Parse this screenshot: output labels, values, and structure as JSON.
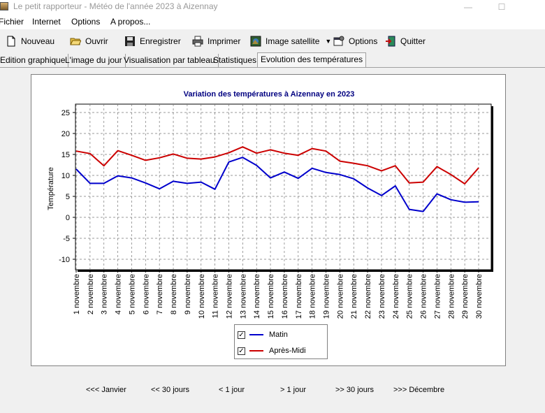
{
  "window": {
    "title": "Le petit rapporteur - Météo de l'année 2023 à Aizennay",
    "minimize_glyph": "—",
    "maximize_glyph": "☐"
  },
  "menu": [
    "Fichier",
    "Internet",
    "Options",
    "A propos..."
  ],
  "toolbar": {
    "nouveau": "Nouveau",
    "ouvrir": "Ouvrir",
    "enregistrer": "Enregistrer",
    "imprimer": "Imprimer",
    "image_satellite": "Image satellite",
    "options": "Options",
    "quitter": "Quitter"
  },
  "tabs": [
    "Edition graphique",
    "L'image du jour",
    "Visualisation par tableau",
    "Statistiques",
    "Evolution des températures"
  ],
  "active_tab": 4,
  "chart_data": {
    "type": "line",
    "title": "Variation des températures à Aizennay en 2023",
    "xlabel": "",
    "ylabel": "Température",
    "ylim": [
      -12.5,
      27
    ],
    "yticks": [
      -10,
      -5,
      0,
      5,
      10,
      15,
      20,
      25
    ],
    "grid": true,
    "legend_position": "bottom-center",
    "categories": [
      "1 novembre",
      "2 novembre",
      "3 novembre",
      "4 novembre",
      "5 novembre",
      "6 novembre",
      "7 novembre",
      "8 novembre",
      "9 novembre",
      "10 novembre",
      "11 novembre",
      "12 novembre",
      "13 novembre",
      "14 novembre",
      "15 novembre",
      "16 novembre",
      "17 novembre",
      "18 novembre",
      "19 novembre",
      "20 novembre",
      "21 novembre",
      "22 novembre",
      "23 novembre",
      "24 novembre",
      "25 novembre",
      "26 novembre",
      "27 novembre",
      "28 novembre",
      "29 novembre",
      "30 novembre"
    ],
    "series": [
      {
        "name": "Matin",
        "color": "#0000cc",
        "checked": true,
        "values": [
          11.5,
          8.1,
          8.1,
          9.9,
          9.4,
          8.2,
          6.8,
          8.6,
          8.1,
          8.4,
          6.7,
          13.2,
          14.3,
          12.4,
          9.4,
          10.8,
          9.3,
          11.7,
          10.7,
          10.2,
          9.2,
          7.0,
          5.2,
          7.5,
          1.9,
          1.4,
          5.6,
          4.2,
          3.6,
          3.7
        ]
      },
      {
        "name": "Après-Midi",
        "color": "#cc0000",
        "checked": true,
        "values": [
          15.8,
          15.2,
          12.3,
          15.9,
          14.8,
          13.6,
          14.2,
          15.1,
          14.1,
          13.9,
          14.4,
          15.4,
          16.8,
          15.3,
          16.1,
          15.3,
          14.8,
          16.4,
          15.8,
          13.4,
          12.9,
          12.3,
          11.1,
          12.3,
          8.2,
          8.4,
          12.1,
          10.2,
          8.0,
          11.8
        ]
      }
    ]
  },
  "nav": {
    "janvier": "<<< Janvier",
    "back30": "<< 30 jours",
    "back1": "< 1 jour",
    "fwd1": "> 1 jour",
    "fwd30": ">> 30 jours",
    "decembre": ">>> Décembre"
  }
}
